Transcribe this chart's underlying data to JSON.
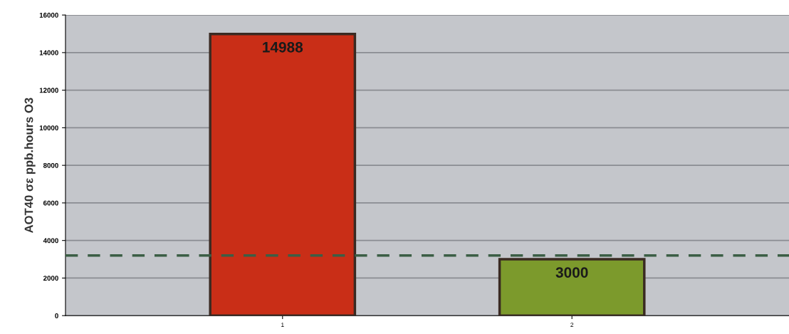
{
  "chart_data": {
    "type": "bar",
    "ylabel": "AOT40 σε ppb.hours O3",
    "categories": [
      "1",
      "2"
    ],
    "values": [
      14988,
      3000
    ],
    "colors": [
      "#c92e17",
      "#7c9a2c"
    ],
    "ylim": [
      0,
      16000
    ],
    "yticks": [
      0,
      2000,
      4000,
      6000,
      8000,
      10000,
      12000,
      14000,
      16000
    ],
    "grid": "y",
    "data_labels": true,
    "ref_lines": [
      {
        "axis": "y",
        "value": 3200,
        "color": "#3b5e45",
        "line_style": "dashed"
      }
    ]
  }
}
